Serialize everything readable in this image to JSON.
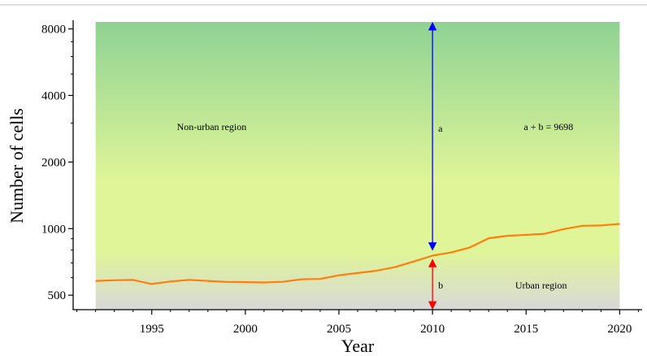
{
  "chart_data": {
    "type": "line",
    "xlabel": "Year",
    "ylabel": "Number of cells",
    "y_scale": "log",
    "xlim": [
      1990.8,
      2021.2
    ],
    "ylim": [
      430,
      8600
    ],
    "x_ticks": [
      1995,
      2000,
      2005,
      2010,
      2015,
      2020
    ],
    "y_ticks": [
      500,
      1000,
      2000,
      4000,
      8000
    ],
    "grid": false,
    "series": [
      {
        "color": "#ff7f0e",
        "x": [
          1992,
          1993,
          1994,
          1995,
          1996,
          1997,
          1998,
          1999,
          2000,
          2001,
          2002,
          2003,
          2004,
          2005,
          2006,
          2007,
          2008,
          2009,
          2010,
          2011,
          2012,
          2013,
          2014,
          2015,
          2016,
          2017,
          2018,
          2019,
          2020
        ],
        "y": [
          580,
          584,
          586,
          562,
          577,
          586,
          580,
          574,
          573,
          571,
          575,
          590,
          592,
          615,
          630,
          645,
          670,
          710,
          755,
          780,
          822,
          905,
          928,
          937,
          948,
          995,
          1030,
          1033,
          1050
        ]
      }
    ],
    "regions": {
      "from_year": 1992,
      "to_year": 2020,
      "non_urban_label": "Non-urban region",
      "urban_label": "Urban region",
      "non_urban_color": "#8fd294",
      "mid_color": "#dff598",
      "urban_color": "#d8d8d8"
    },
    "annotations": {
      "marker_year": 2010,
      "upper_label": "a",
      "lower_label": "b",
      "sum_label": "a + b = 9698",
      "upper_arrow_color": "#0000ff",
      "lower_arrow_color": "#ff0000"
    }
  }
}
